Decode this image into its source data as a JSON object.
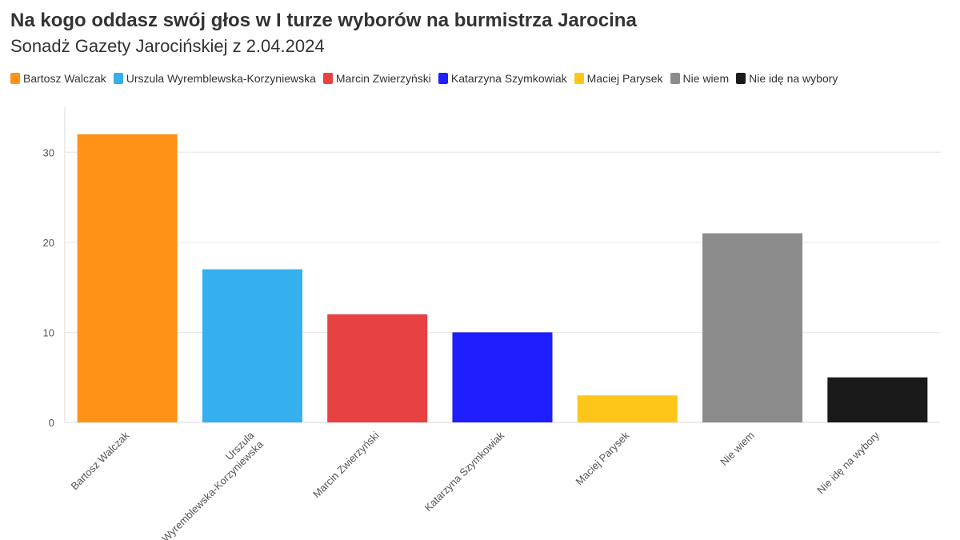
{
  "title": "Na kogo oddasz swój głos w I turze wyborów na burmistrza Jarocina",
  "subtitle": "Sonadż Gazety Jarocińskiej z 2.04.2024",
  "legend": [
    {
      "label": "Bartosz Walczak",
      "color": "#FF9217"
    },
    {
      "label": "Urszula Wyremblewska-Korzyniewska",
      "color": "#36AFEE"
    },
    {
      "label": "Marcin Zwierzyński",
      "color": "#E84141"
    },
    {
      "label": "Katarzyna Szymkowiak",
      "color": "#1E1EFF"
    },
    {
      "label": "Maciej Parysek",
      "color": "#FFC61A"
    },
    {
      "label": "Nie wiem",
      "color": "#8C8C8C"
    },
    {
      "label": "Nie idę na wybory",
      "color": "#1A1A1A"
    }
  ],
  "chart_data": {
    "type": "bar",
    "title": "Na kogo oddasz swój głos w I turze wyborów na burmistrza Jarocina",
    "subtitle": "Sonadż Gazety Jarocińskiej z 2.04.2024",
    "categories": [
      [
        "Bartosz Walczak"
      ],
      [
        "Urszula",
        "Wyremblewska-Korzyniewska"
      ],
      [
        "Marcin Zwierzyński"
      ],
      [
        "Katarzyna Szymkowiak"
      ],
      [
        "Maciej Parysek"
      ],
      [
        "Nie wiem"
      ],
      [
        "Nie idę na wybory"
      ]
    ],
    "values": [
      32,
      17,
      12,
      10,
      3,
      21,
      5
    ],
    "colors": [
      "#FF9217",
      "#36AFEE",
      "#E84141",
      "#1E1EFF",
      "#FFC61A",
      "#8C8C8C",
      "#1A1A1A"
    ],
    "yticks": [
      0,
      10,
      20,
      30
    ],
    "ylim": [
      0,
      35
    ],
    "xlabel": "",
    "ylabel": "",
    "grid": true,
    "legend_position": "top"
  }
}
